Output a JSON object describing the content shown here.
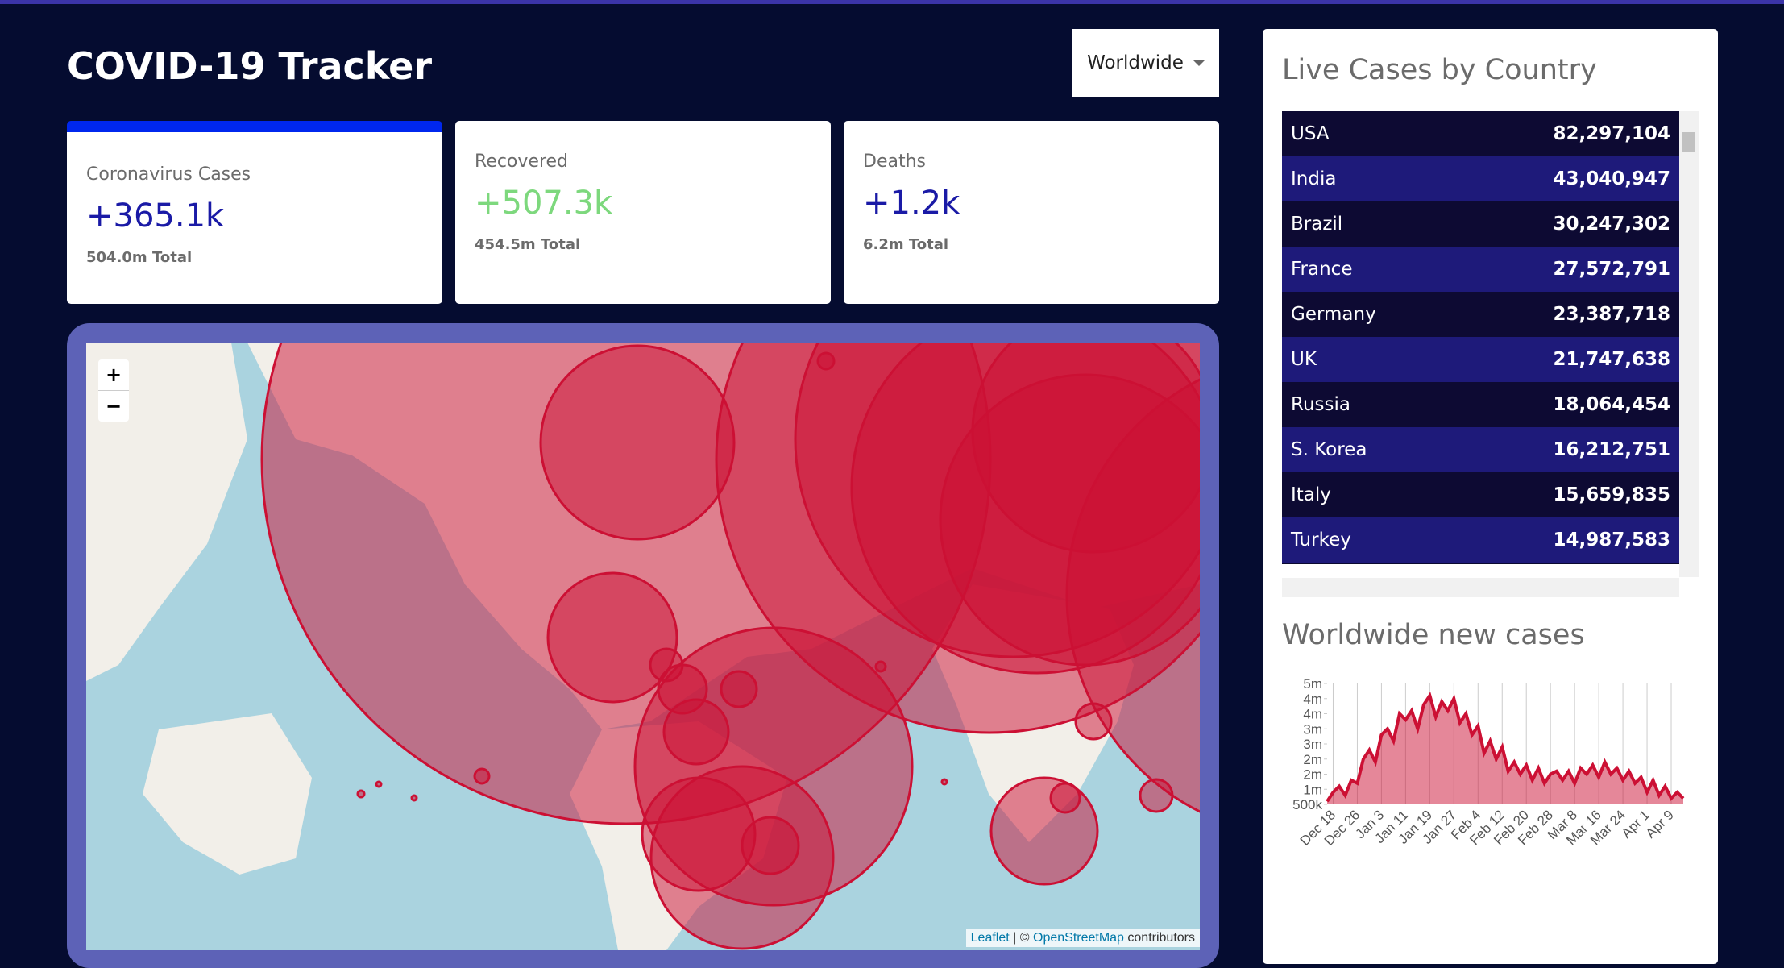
{
  "header": {
    "title": "COVID-19 Tracker",
    "dropdown": "Worldwide"
  },
  "stats": [
    {
      "title": "Coronavirus Cases",
      "value": "+365.1k",
      "total": "504.0m Total"
    },
    {
      "title": "Recovered",
      "value": "+507.3k",
      "total": "454.5m Total"
    },
    {
      "title": "Deaths",
      "value": "+1.2k",
      "total": "6.2m Total"
    }
  ],
  "map": {
    "zoom_in": "+",
    "zoom_out": "−",
    "attribution": {
      "leaflet": "Leaflet",
      "separator": "| ©",
      "osm": "OpenStreetMap",
      "suffix": "contributors"
    }
  },
  "table": {
    "title": "Live Cases by Country",
    "rows": [
      [
        "USA",
        "82,297,104"
      ],
      [
        "India",
        "43,040,947"
      ],
      [
        "Brazil",
        "30,247,302"
      ],
      [
        "France",
        "27,572,791"
      ],
      [
        "Germany",
        "23,387,718"
      ],
      [
        "UK",
        "21,747,638"
      ],
      [
        "Russia",
        "18,064,454"
      ],
      [
        "S. Korea",
        "16,212,751"
      ],
      [
        "Italy",
        "15,659,835"
      ],
      [
        "Turkey",
        "14,987,583"
      ]
    ]
  },
  "chart_data": {
    "type": "line",
    "title": "Worldwide new cases",
    "categories": [
      null,
      "Dec 18",
      null,
      null,
      null,
      "Dec 26",
      null,
      null,
      null,
      "Jan 3",
      null,
      null,
      null,
      "Jan 11",
      null,
      null,
      null,
      "Jan 19",
      null,
      null,
      null,
      "Jan 27",
      null,
      null,
      null,
      "Feb 4",
      null,
      null,
      null,
      "Feb 12",
      null,
      null,
      null,
      "Feb 20",
      null,
      null,
      null,
      "Feb 28",
      null,
      null,
      null,
      "Mar 8",
      null,
      null,
      null,
      "Mar 16",
      null,
      null,
      null,
      "Mar 24",
      null,
      null,
      null,
      "Apr 1",
      null,
      null,
      null,
      "Apr 9",
      null,
      null
    ],
    "values": [
      600000,
      900000,
      1100000,
      800000,
      1300000,
      1200000,
      2000000,
      2300000,
      1900000,
      2800000,
      3000000,
      2600000,
      3500000,
      3300000,
      3600000,
      3000000,
      3800000,
      4100000,
      3400000,
      3900000,
      3600000,
      4000000,
      3200000,
      3500000,
      2800000,
      3100000,
      2200000,
      2600000,
      2000000,
      2400000,
      1600000,
      1900000,
      1500000,
      1800000,
      1300000,
      1700000,
      1200000,
      1500000,
      1600000,
      1300000,
      1600000,
      1200000,
      1700000,
      1500000,
      1800000,
      1400000,
      1900000,
      1500000,
      1700000,
      1300000,
      1600000,
      1200000,
      1400000,
      900000,
      1300000,
      800000,
      1100000,
      700000,
      900000,
      700000
    ],
    "color": "#cc1034",
    "fill_color": "rgba(204,16,52,0.5)",
    "ylim": [
      500000,
      4500000
    ],
    "yticks": [
      {
        "value": 500000,
        "label": "500k"
      },
      {
        "value": 1000000,
        "label": "1m"
      },
      {
        "value": 1500000,
        "label": "2m"
      },
      {
        "value": 2000000,
        "label": "2m"
      },
      {
        "value": 2500000,
        "label": "3m"
      },
      {
        "value": 3000000,
        "label": "3m"
      },
      {
        "value": 3500000,
        "label": "4m"
      },
      {
        "value": 4000000,
        "label": "4m"
      },
      {
        "value": 4500000,
        "label": "5m"
      }
    ],
    "grid": true
  }
}
